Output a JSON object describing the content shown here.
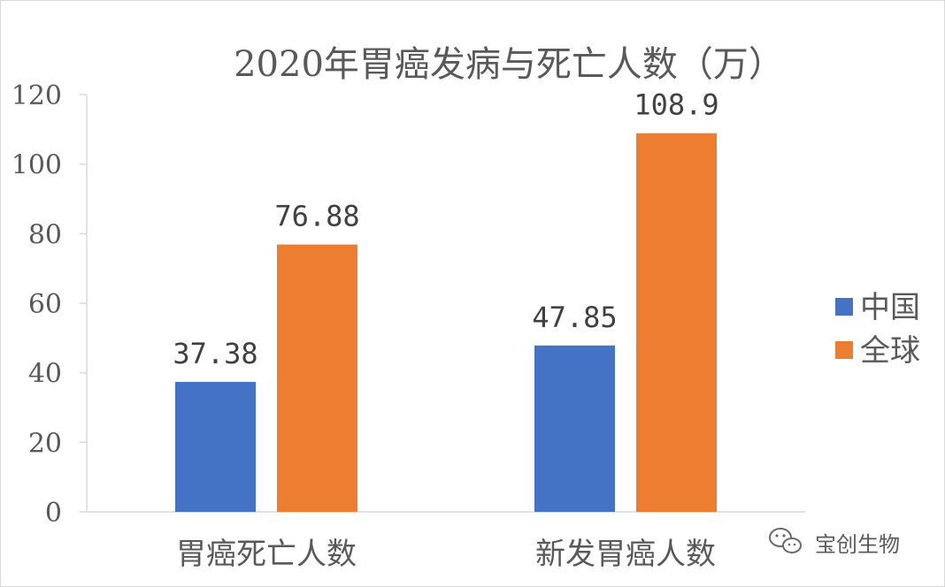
{
  "chart_data": {
    "type": "bar",
    "title": "2020年胃癌发病与死亡人数（万）",
    "categories": [
      "胃癌死亡人数",
      "新发胃癌人数"
    ],
    "series": [
      {
        "name": "中国",
        "color": "#4472C4",
        "values": [
          37.38,
          47.85
        ],
        "labels": [
          "37.38",
          "47.85"
        ]
      },
      {
        "name": "全球",
        "color": "#ED7D31",
        "values": [
          76.88,
          108.9
        ],
        "labels": [
          "76.88",
          "108.9"
        ]
      }
    ],
    "ylim": [
      0,
      120
    ],
    "yticks": [
      0,
      20,
      40,
      60,
      80,
      100,
      120
    ],
    "xlabel": "",
    "ylabel": "",
    "legend_position": "right",
    "grid": false
  },
  "watermark": {
    "text": "宝创生物",
    "icon": "wechat-icon"
  }
}
